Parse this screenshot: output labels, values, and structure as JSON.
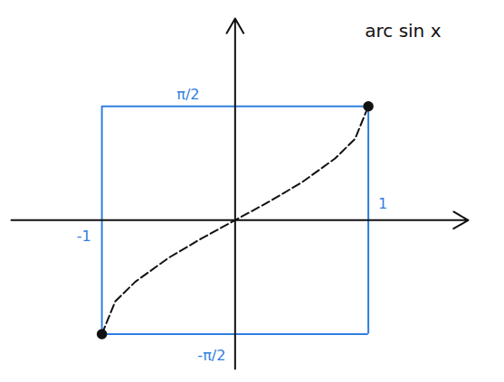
{
  "chart_data": {
    "type": "line",
    "title": "arc sin x",
    "x": [
      -1,
      -0.9,
      -0.75,
      -0.5,
      -0.25,
      0,
      0.25,
      0.5,
      0.75,
      0.9,
      1
    ],
    "series": [
      {
        "color": "#111111",
        "values": [
          -1.57,
          -1.12,
          -0.85,
          -0.52,
          -0.25,
          0,
          0.25,
          0.52,
          0.85,
          1.12,
          1.57
        ]
      }
    ],
    "xlim": [
      -1.68,
      1.75
    ],
    "ylim": [
      -2.05,
      2.78
    ],
    "xticks": [
      -1,
      1
    ],
    "yticks": [
      {
        "value": -1.5708,
        "label": "-π/2"
      },
      {
        "value": 1.5708,
        "label": "π/2"
      }
    ],
    "grid": true
  }
}
